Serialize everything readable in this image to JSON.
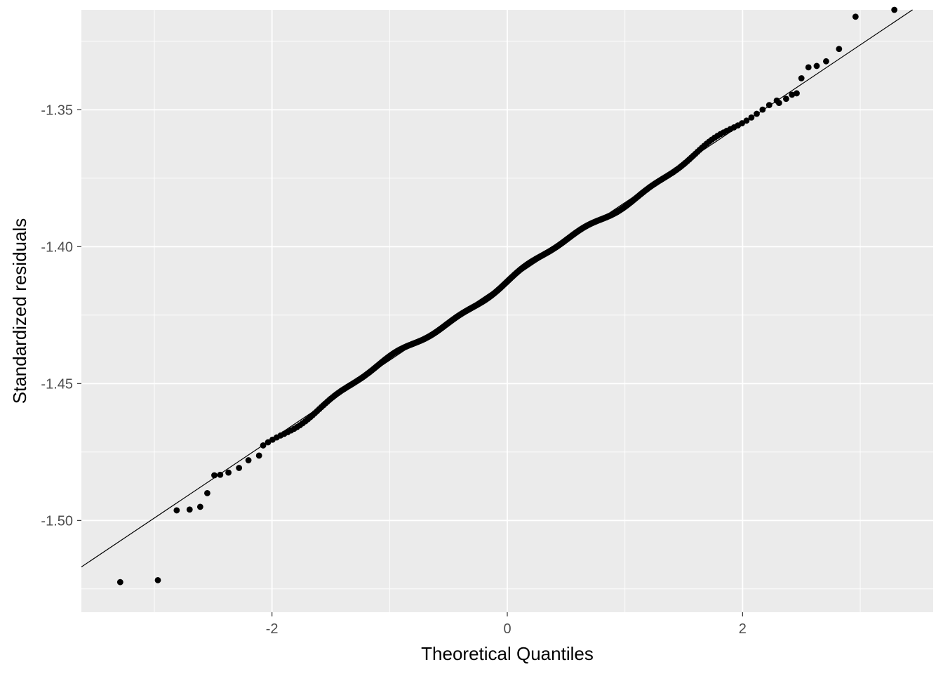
{
  "chart_data": {
    "type": "scatter",
    "title": "",
    "xlabel": "Theoretical Quantiles",
    "ylabel": "Standardized residuals",
    "xlim": [
      -3.62,
      3.62
    ],
    "ylim": [
      -1.5335,
      -1.3135
    ],
    "x_ticks": [
      -2,
      0,
      2
    ],
    "x_tick_labels": [
      "-2",
      "0",
      "2"
    ],
    "y_ticks": [
      -1.35,
      -1.4,
      -1.45,
      -1.5
    ],
    "y_tick_labels": [
      "-1.35",
      "-1.40",
      "-1.45",
      "-1.50"
    ],
    "grid": true,
    "legend": "none",
    "reference_line": {
      "intercept": -1.4127,
      "slope": 0.0288
    },
    "n_points": 500,
    "notable_points": [
      {
        "x": -3.29,
        "y": -1.5225
      },
      {
        "x": -2.97,
        "y": -1.5218
      },
      {
        "x": -2.81,
        "y": -1.4963
      },
      {
        "x": -2.7,
        "y": -1.496
      },
      {
        "x": -2.61,
        "y": -1.495
      },
      {
        "x": -2.55,
        "y": -1.49
      },
      {
        "x": -2.49,
        "y": -1.4835
      },
      {
        "x": -2.44,
        "y": -1.4833
      },
      {
        "x": -2.37,
        "y": -1.4825
      },
      {
        "x": -2.28,
        "y": -1.4808
      },
      {
        "x": -2.2,
        "y": -1.478
      },
      {
        "x": -2.11,
        "y": -1.4763
      },
      {
        "x": 2.31,
        "y": -1.3475
      },
      {
        "x": 2.37,
        "y": -1.346
      },
      {
        "x": 2.42,
        "y": -1.3445
      },
      {
        "x": 2.46,
        "y": -1.344
      },
      {
        "x": 2.5,
        "y": -1.3385
      },
      {
        "x": 2.56,
        "y": -1.3345
      },
      {
        "x": 2.63,
        "y": -1.334
      },
      {
        "x": 2.71,
        "y": -1.3323
      },
      {
        "x": 2.82,
        "y": -1.3278
      },
      {
        "x": 2.96,
        "y": -1.316
      },
      {
        "x": 3.29,
        "y": -1.3135
      }
    ],
    "colors": {
      "panel": "#ebebeb",
      "grid_major": "#ffffff",
      "points": "#000000",
      "line": "#000000"
    }
  }
}
